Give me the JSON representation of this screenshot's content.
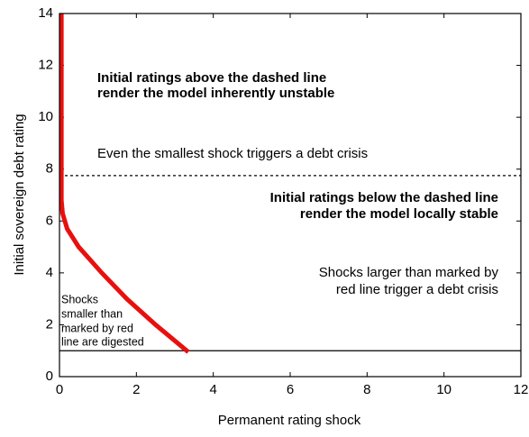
{
  "chart_data": {
    "type": "line",
    "xlabel": "Permanent rating shock",
    "ylabel": "Initial sovereign debt rating",
    "xlim": [
      0,
      12
    ],
    "ylim": [
      0,
      14
    ],
    "xticks": [
      0,
      2,
      4,
      6,
      8,
      10,
      12
    ],
    "yticks": [
      0,
      2,
      4,
      6,
      8,
      10,
      12,
      14
    ],
    "series": [
      {
        "color": "#e8100e",
        "x": [
          0.05,
          0.05,
          0.08,
          0.2,
          0.5,
          1.1,
          1.75,
          2.5,
          3.35
        ],
        "values": [
          14,
          6.8,
          6.3,
          5.7,
          5,
          4,
          3,
          2,
          0.95
        ]
      }
    ],
    "hlines": [
      {
        "y": 1,
        "style": "solid"
      },
      {
        "y": 7.75,
        "style": "dashed"
      }
    ],
    "annotations": [
      "Initial ratings above the dashed line",
      "render the model inherently unstable",
      "Even the smallest shock triggers a debt crisis",
      "Initial ratings below the dashed line",
      "render the model locally stable",
      "Shocks larger than marked by",
      "red line trigger a debt crisis",
      "Shocks",
      "smaller than",
      "marked by red",
      "line are digested"
    ]
  }
}
